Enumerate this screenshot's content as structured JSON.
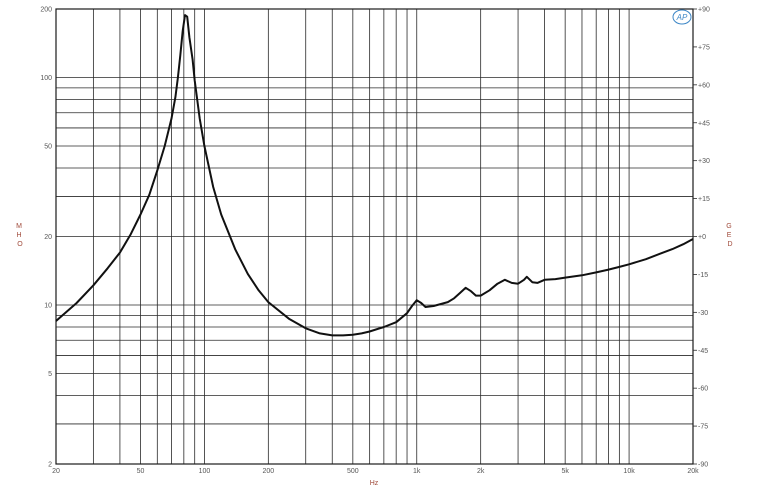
{
  "chart_data": {
    "type": "line",
    "x_scale": "log",
    "y_scale": "log",
    "xlim": [
      20,
      20000
    ],
    "ylim": [
      2,
      200
    ],
    "y2lim": [
      -90,
      90
    ],
    "xlabel": "Hz",
    "ylabel": "OHM",
    "y2label": "DEG",
    "x_ticks": [
      {
        "value": 20,
        "label": "20"
      },
      {
        "value": 50,
        "label": "50"
      },
      {
        "value": 100,
        "label": "100"
      },
      {
        "value": 200,
        "label": "200"
      },
      {
        "value": 500,
        "label": "500"
      },
      {
        "value": 1000,
        "label": "1k"
      },
      {
        "value": 2000,
        "label": "2k"
      },
      {
        "value": 5000,
        "label": "5k"
      },
      {
        "value": 10000,
        "label": "10k"
      },
      {
        "value": 20000,
        "label": "20k"
      }
    ],
    "y_ticks": [
      {
        "value": 2,
        "label": "2"
      },
      {
        "value": 5,
        "label": "5"
      },
      {
        "value": 10,
        "label": "10"
      },
      {
        "value": 20,
        "label": "20"
      },
      {
        "value": 50,
        "label": "50"
      },
      {
        "value": 100,
        "label": "100"
      },
      {
        "value": 200,
        "label": "200"
      }
    ],
    "y2_ticks": [
      {
        "value": 90,
        "label": "+90"
      },
      {
        "value": 75,
        "label": "+75"
      },
      {
        "value": 60,
        "label": "+60"
      },
      {
        "value": 45,
        "label": "+45"
      },
      {
        "value": 30,
        "label": "+30"
      },
      {
        "value": 15,
        "label": "+15"
      },
      {
        "value": 0,
        "label": "+0"
      },
      {
        "value": -15,
        "label": "-15"
      },
      {
        "value": -30,
        "label": "-30"
      },
      {
        "value": -45,
        "label": "-45"
      },
      {
        "value": -60,
        "label": "-60"
      },
      {
        "value": -75,
        "label": "-75"
      },
      {
        "value": -90,
        "label": "-90"
      }
    ],
    "grid": true,
    "series": [
      {
        "color": "#111111",
        "x": [
          20,
          25,
          30,
          35,
          40,
          45,
          50,
          55,
          60,
          65,
          70,
          73,
          75,
          77,
          79,
          81,
          83,
          85,
          88,
          90,
          95,
          100,
          110,
          120,
          140,
          160,
          180,
          200,
          250,
          300,
          350,
          400,
          450,
          500,
          550,
          600,
          700,
          800,
          900,
          950,
          1000,
          1050,
          1100,
          1200,
          1300,
          1400,
          1500,
          1600,
          1700,
          1800,
          1900,
          2000,
          2200,
          2400,
          2600,
          2800,
          3000,
          3200,
          3300,
          3500,
          3700,
          4000,
          4500,
          5000,
          6000,
          7000,
          8000,
          9000,
          10000,
          12000,
          14000,
          16000,
          18000,
          20000
        ],
        "y": [
          8.5,
          10.2,
          12.2,
          14.5,
          17,
          20.5,
          25,
          30.5,
          39,
          50,
          66,
          82,
          100,
          125,
          160,
          188,
          185,
          150,
          120,
          97,
          66,
          50,
          33,
          25,
          17.5,
          13.7,
          11.6,
          10.3,
          8.7,
          7.9,
          7.5,
          7.35,
          7.35,
          7.4,
          7.5,
          7.65,
          8.0,
          8.4,
          9.2,
          9.9,
          10.5,
          10.2,
          9.8,
          9.9,
          10.1,
          10.3,
          10.7,
          11.3,
          11.9,
          11.5,
          11.0,
          11.0,
          11.6,
          12.4,
          12.9,
          12.5,
          12.4,
          12.9,
          13.3,
          12.6,
          12.5,
          12.9,
          13.0,
          13.2,
          13.5,
          13.9,
          14.3,
          14.7,
          15.1,
          15.9,
          16.8,
          17.6,
          18.5,
          19.5
        ]
      }
    ]
  },
  "logo": {
    "text": "AP"
  }
}
